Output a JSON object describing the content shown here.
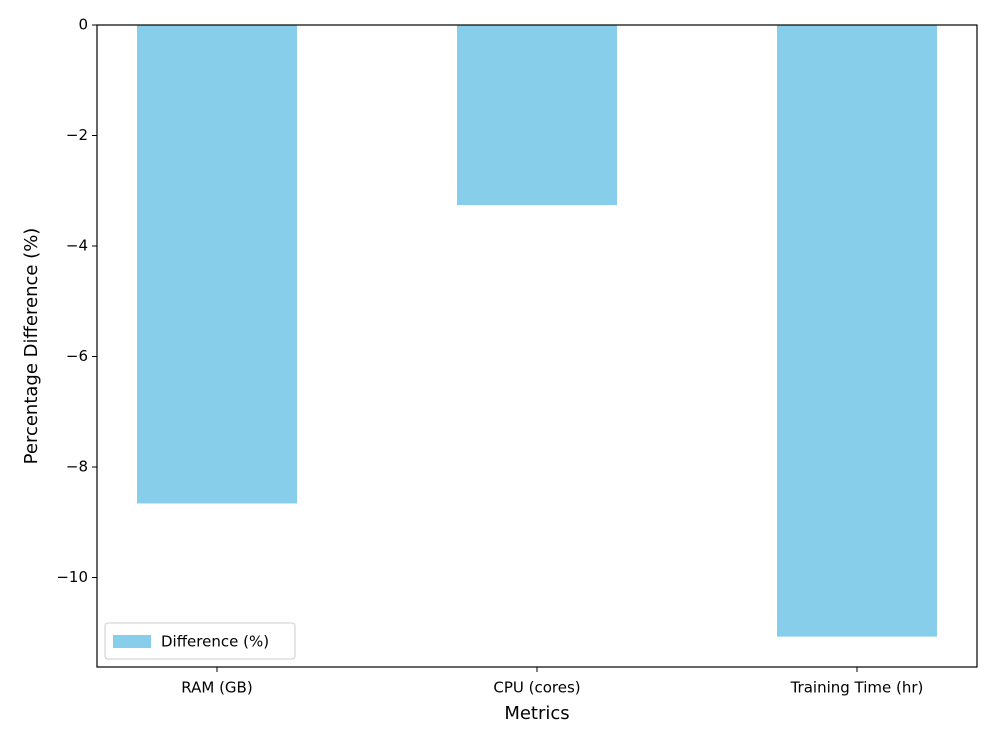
{
  "chart_data": {
    "type": "bar",
    "x_label": "Metrics",
    "y_label": "Percentage Difference (%)",
    "categories": [
      "RAM (GB)",
      "CPU (cores)",
      "Training Time (hr)"
    ],
    "series": [
      {
        "name": "Difference (%)",
        "color": "#87ceeb",
        "values": [
          -8.66,
          -3.26,
          -11.07
        ]
      }
    ],
    "ylim": [
      -11.62,
      0
    ],
    "yticks": [
      {
        "value": -10,
        "label": "−10"
      },
      {
        "value": -8,
        "label": "−8"
      },
      {
        "value": -6,
        "label": "−6"
      },
      {
        "value": -4,
        "label": "−4"
      },
      {
        "value": -2,
        "label": "−2"
      },
      0
    ],
    "legend": "lower left"
  }
}
